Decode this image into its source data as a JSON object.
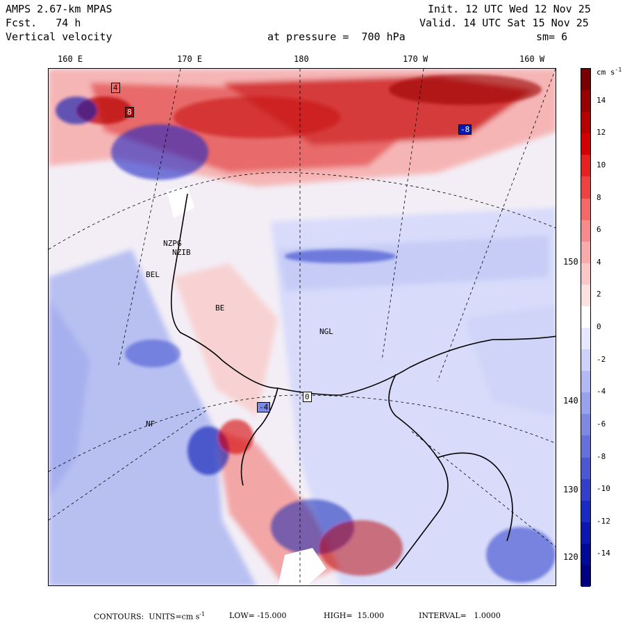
{
  "header": {
    "model": "AMPS 2.67-km MPAS",
    "forecast": "Fcst.   74 h",
    "field": "Vertical velocity",
    "init": "Init. 12 UTC Wed 12 Nov 25",
    "valid": "Valid. 14 UTC Sat 15 Nov 25",
    "pressure": "at pressure =  700 hPa",
    "smooth": "sm= 6"
  },
  "lon_labels": [
    "160 E",
    "170 E",
    "180",
    "170 W",
    "160 W"
  ],
  "lat_labels": [
    "150 W",
    "140 W",
    "130 W",
    "120 W"
  ],
  "colorbar": {
    "units": "cm s",
    "units_sup": "-1",
    "ticks": [
      "14",
      "12",
      "10",
      "8",
      "6",
      "4",
      "2",
      "0",
      "-2",
      "-4",
      "-6",
      "-8",
      "-10",
      "-12",
      "-14"
    ],
    "colors": [
      "#7a0000",
      "#990000",
      "#b80000",
      "#d40000",
      "#e82020",
      "#f04040",
      "#f46868",
      "#f78a8a",
      "#f9aaaa",
      "#fbc6c6",
      "#fde0e0",
      "#ffffff",
      "#e6e8ff",
      "#cdd2fb",
      "#b2b9f4",
      "#98a1ec",
      "#7e89e4",
      "#6470dc",
      "#4a58d4",
      "#3040cc",
      "#1a2ac4",
      "#0a18b0",
      "#000a98",
      "#000080"
    ]
  },
  "stations": [
    "NZPG",
    "NZIB",
    "BEL",
    "NGL",
    "BE",
    "NF"
  ],
  "footer": {
    "contours": "CONTOURS:  UNITS=cm s",
    "sup": "-1",
    "low": "LOW= -15.000",
    "high": "HIGH=  15.000",
    "interval": "INTERVAL=   1.0000"
  },
  "contour_labels": [
    "4",
    "-4",
    "8",
    "-8",
    "0"
  ]
}
